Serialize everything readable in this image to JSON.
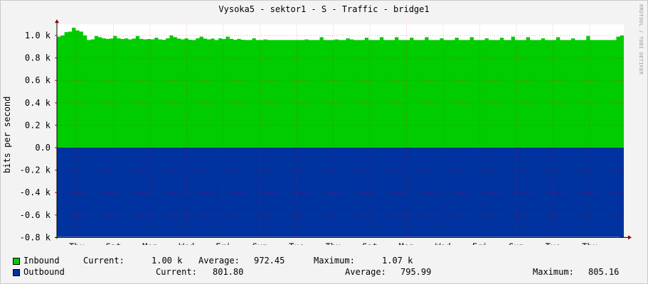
{
  "chart_data": {
    "type": "area",
    "title": "Vysoka5 - sektor1 - S - Traffic - bridge1",
    "ylabel": "bits per second",
    "vendor": "RRDTOOL / TOBI OETIKER",
    "ylim": [
      -800,
      1100
    ],
    "y_ticks": [
      {
        "value": 1000,
        "label": "1.0 k"
      },
      {
        "value": 800,
        "label": "0.8 k"
      },
      {
        "value": 600,
        "label": "0.6 k"
      },
      {
        "value": 400,
        "label": "0.4 k"
      },
      {
        "value": 200,
        "label": "0.2 k"
      },
      {
        "value": 0,
        "label": "0.0"
      },
      {
        "value": -200,
        "label": "-0.2 k"
      },
      {
        "value": -400,
        "label": "-0.4 k"
      },
      {
        "value": -600,
        "label": "-0.6 k"
      },
      {
        "value": -800,
        "label": "-0.8 k"
      }
    ],
    "x_ticks": [
      "Thu",
      "Sat",
      "Mon",
      "Wed",
      "Fri",
      "Sun",
      "Tue",
      "Thu",
      "Sat",
      "Mon",
      "Wed",
      "Fri",
      "Sun",
      "Tue",
      "Thu"
    ],
    "grid": true,
    "series": [
      {
        "name": "Inbound",
        "color": "#00cc00",
        "values": [
          990,
          1000,
          1030,
          1035,
          1070,
          1045,
          1035,
          1000,
          960,
          965,
          995,
          985,
          975,
          970,
          972,
          995,
          975,
          968,
          974,
          965,
          972,
          995,
          970,
          965,
          968,
          965,
          980,
          965,
          962,
          975,
          1000,
          985,
          972,
          965,
          975,
          962,
          960,
          975,
          990,
          972,
          965,
          972,
          960,
          975,
          968,
          990,
          970,
          962,
          970,
          962,
          960,
          960,
          975,
          960,
          960,
          965,
          960,
          960,
          960,
          960,
          960,
          960,
          960,
          960,
          960,
          960,
          965,
          960,
          960,
          960,
          985,
          960,
          960,
          960,
          965,
          960,
          960,
          975,
          965,
          960,
          960,
          960,
          980,
          960,
          960,
          960,
          985,
          960,
          960,
          960,
          985,
          960,
          960,
          960,
          980,
          960,
          960,
          960,
          985,
          960,
          960,
          960,
          975,
          960,
          960,
          960,
          980,
          960,
          960,
          960,
          985,
          960,
          960,
          960,
          975,
          960,
          960,
          960,
          980,
          960,
          960,
          990,
          960,
          960,
          960,
          985,
          960,
          960,
          960,
          975,
          960,
          960,
          960,
          985,
          960,
          960,
          960,
          975,
          960,
          960,
          960,
          995,
          960,
          960,
          960,
          960,
          960,
          960,
          960,
          990,
          1000
        ]
      },
      {
        "name": "Outbound",
        "color": "#0033a0",
        "values": [
          -795,
          -795,
          -795,
          -795,
          -795,
          -795,
          -795,
          -795,
          -795,
          -795,
          -795,
          -795,
          -795,
          -795,
          -795,
          -795,
          -795,
          -795,
          -795,
          -795,
          -795,
          -795,
          -795,
          -795,
          -795,
          -795,
          -795,
          -795,
          -795,
          -795,
          -795,
          -795,
          -795,
          -795,
          -795,
          -795,
          -795,
          -795,
          -795,
          -795,
          -795,
          -795,
          -795,
          -795,
          -795,
          -795,
          -795,
          -795,
          -795,
          -795,
          -795,
          -795,
          -795,
          -795,
          -795,
          -795,
          -795,
          -795,
          -795,
          -795,
          -795,
          -795,
          -795,
          -795,
          -795,
          -795,
          -795,
          -795,
          -795,
          -795,
          -795,
          -795,
          -795,
          -795,
          -795,
          -795,
          -795,
          -795,
          -795,
          -795,
          -795,
          -795,
          -795,
          -795,
          -795,
          -795,
          -795,
          -795,
          -795,
          -795,
          -795,
          -795,
          -795,
          -795,
          -795,
          -795,
          -795,
          -795,
          -795,
          -795,
          -795,
          -795,
          -795,
          -795,
          -795,
          -795,
          -795,
          -795,
          -795,
          -795,
          -795,
          -795,
          -795,
          -795,
          -795,
          -795,
          -795,
          -795,
          -795,
          -795,
          -795,
          -795,
          -795,
          -795,
          -795,
          -795,
          -795,
          -795,
          -795,
          -795,
          -795,
          -795,
          -795,
          -795,
          -795,
          -795,
          -795,
          -795,
          -795,
          -795,
          -795,
          -795,
          -795,
          -795,
          -795,
          -795,
          -795,
          -795,
          -795,
          -795,
          -795,
          -795,
          -802
        ]
      }
    ]
  },
  "legend": {
    "inbound": {
      "name": "Inbound",
      "current_label": "Current:",
      "current": "1.00 k",
      "average_label": "Average:",
      "average": "972.45",
      "maximum_label": "Maximum:",
      "maximum": "1.07 k"
    },
    "outbound": {
      "name": "Outbound",
      "current_label": "Current:",
      "current": "801.80",
      "average_label": "Average:",
      "average": "795.99",
      "maximum_label": "Maximum:",
      "maximum": "805.16"
    }
  }
}
